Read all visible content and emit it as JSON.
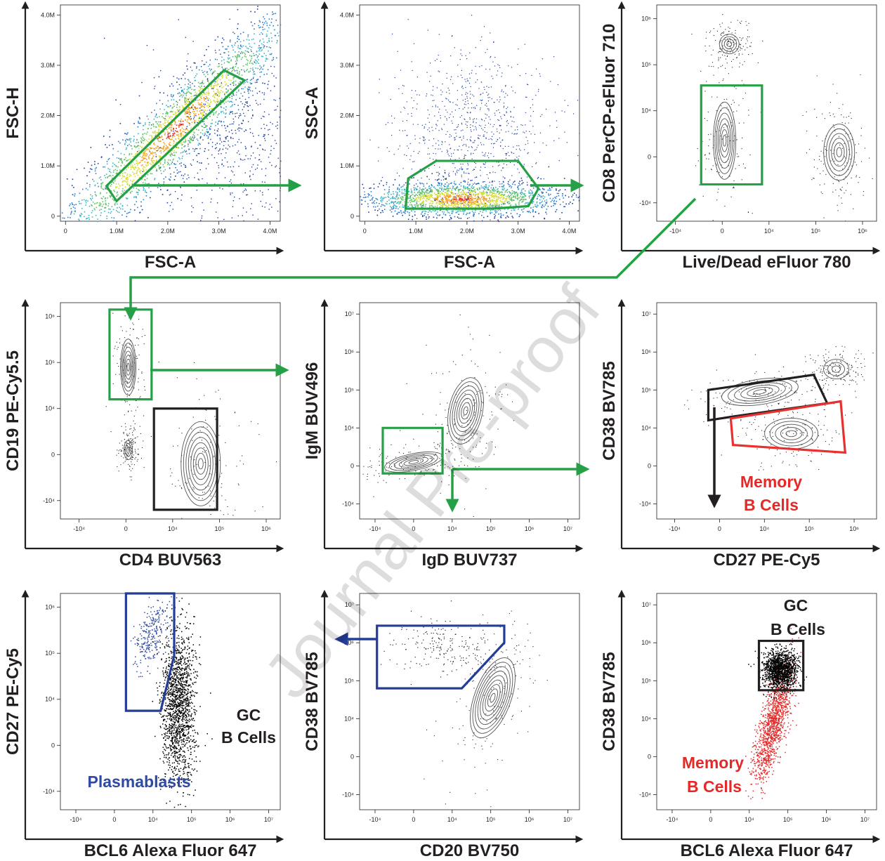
{
  "watermark": "Journal Pre-proof",
  "colors": {
    "gate_green": "#26a046",
    "gate_black": "#231f20",
    "gate_red": "#e8302f",
    "gate_blue": "#233d99",
    "memory_red": "#e42a28",
    "plasmablast_blue": "#2e4aa3",
    "axis": "#231f20"
  },
  "chart_data": [
    {
      "id": "p1",
      "type": "scatter",
      "style": "pseudocolor-density",
      "xlabel": "FSC-A",
      "ylabel": "FSC-H",
      "xticks": [
        "0",
        "1.0M",
        "2.0M",
        "3.0M",
        "4.0M"
      ],
      "yticks": [
        "0",
        "1.0M",
        "2.0M",
        "3.0M",
        "4.0M"
      ],
      "xlim": [
        0,
        4200000
      ],
      "ylim": [
        0,
        4200000
      ],
      "gate": {
        "color": "green",
        "vertices": [
          [
            800000,
            600000
          ],
          [
            3100000,
            2900000
          ],
          [
            3500000,
            2700000
          ],
          [
            1000000,
            300000
          ]
        ]
      },
      "labels": []
    },
    {
      "id": "p2",
      "type": "scatter",
      "style": "pseudocolor-density",
      "xlabel": "FSC-A",
      "ylabel": "SSC-A",
      "xticks": [
        "0",
        "1.0M",
        "2.0M",
        "3.0M",
        "4.0M"
      ],
      "yticks": [
        "0",
        "1.0M",
        "2.0M",
        "3.0M",
        "4.0M"
      ],
      "xlim": [
        0,
        4200000
      ],
      "ylim": [
        0,
        4200000
      ],
      "gate": {
        "color": "green",
        "vertices": [
          [
            800000,
            150000
          ],
          [
            850000,
            750000
          ],
          [
            1400000,
            1100000
          ],
          [
            3000000,
            1100000
          ],
          [
            3400000,
            550000
          ],
          [
            3200000,
            200000
          ],
          [
            2500000,
            150000
          ]
        ]
      },
      "labels": []
    },
    {
      "id": "p3",
      "type": "scatter",
      "style": "contour",
      "xlabel": "Live/Dead eFluor 780",
      "ylabel": "CD8 PerCP-eFluor 710",
      "xticks": [
        "-10⁴",
        "0",
        "10⁴",
        "10⁵",
        "10⁶"
      ],
      "yticks": [
        "-10⁴",
        "0",
        "10⁴",
        "10⁵",
        "10⁶"
      ],
      "gate": {
        "color": "green",
        "vertices": [
          [
            -0.45,
            -0.6
          ],
          [
            -0.45,
            1.55
          ],
          [
            0.85,
            1.55
          ],
          [
            0.85,
            -0.6
          ]
        ]
      },
      "labels": []
    },
    {
      "id": "p4",
      "type": "scatter",
      "style": "contour",
      "xlabel": "CD4 BUV563",
      "ylabel": "CD19 PE-Cy5.5",
      "xticks": [
        "-10⁴",
        "0",
        "10⁴",
        "10⁵",
        "10⁶"
      ],
      "yticks": [
        "-10⁴",
        "0",
        "10⁴",
        "10⁵",
        "10⁶"
      ],
      "gate": {
        "color": "green",
        "vertices": [
          [
            -0.35,
            1.2
          ],
          [
            -0.35,
            3.15
          ],
          [
            0.55,
            3.15
          ],
          [
            0.55,
            1.2
          ]
        ]
      },
      "gate2": {
        "color": "black",
        "vertices": [
          [
            0.6,
            -1.2
          ],
          [
            0.6,
            1.0
          ],
          [
            1.95,
            1.0
          ],
          [
            1.95,
            -1.2
          ]
        ]
      },
      "labels": []
    },
    {
      "id": "p5",
      "type": "scatter",
      "style": "contour",
      "xlabel": "IgD BUV737",
      "ylabel": "IgM BUV496",
      "xticks": [
        "-10⁴",
        "0",
        "10⁴",
        "10⁵",
        "10⁶",
        "10⁷"
      ],
      "yticks": [
        "-10⁴",
        "0",
        "10⁴",
        "10⁵",
        "10⁶",
        "10⁷"
      ],
      "gate": {
        "color": "green",
        "vertices": [
          [
            -0.8,
            -0.2
          ],
          [
            -0.8,
            1.0
          ],
          [
            0.75,
            1.0
          ],
          [
            0.75,
            -0.2
          ]
        ]
      },
      "labels": []
    },
    {
      "id": "p6",
      "type": "scatter",
      "style": "contour",
      "xlabel": "CD27 PE-Cy5",
      "ylabel": "CD38 BV785",
      "xticks": [
        "-10⁴",
        "0",
        "10⁴",
        "10⁵",
        "10⁶"
      ],
      "yticks": [
        "-10⁴",
        "0",
        "10⁴",
        "10⁵",
        "10⁶",
        "10⁷"
      ],
      "gate": {
        "color": "black",
        "vertices": [
          [
            -0.25,
            1.2
          ],
          [
            -0.25,
            2.0
          ],
          [
            2.1,
            2.4
          ],
          [
            2.4,
            1.65
          ],
          [
            0.3,
            1.3
          ]
        ]
      },
      "gate2": {
        "color": "red",
        "vertices": [
          [
            0.3,
            0.55
          ],
          [
            0.25,
            1.25
          ],
          [
            2.7,
            1.7
          ],
          [
            2.8,
            0.35
          ]
        ]
      },
      "labels": [
        {
          "text": "Memory",
          "color": "red"
        },
        {
          "text": "B Cells",
          "color": "red"
        }
      ]
    },
    {
      "id": "p7",
      "type": "scatter",
      "style": "dot",
      "xlabel": "BCL6 Alexa Fluor 647",
      "ylabel": "CD27 PE-Cy5",
      "xticks": [
        "-10⁴",
        "0",
        "10⁴",
        "10⁵",
        "10⁶",
        "10⁷"
      ],
      "yticks": [
        "-10⁴",
        "0",
        "10⁴",
        "10⁵",
        "10⁶"
      ],
      "gate": {
        "color": "blue",
        "vertices": [
          [
            0.3,
            3.3
          ],
          [
            1.55,
            3.3
          ],
          [
            1.55,
            1.95
          ],
          [
            1.2,
            0.75
          ],
          [
            0.3,
            0.75
          ]
        ]
      },
      "labels": [
        {
          "text": "GC",
          "color": "black"
        },
        {
          "text": "B Cells",
          "color": "black"
        },
        {
          "text": "Plasmablasts",
          "color": "blue"
        }
      ]
    },
    {
      "id": "p8",
      "type": "scatter",
      "style": "contour",
      "xlabel": "CD20 BV750",
      "ylabel": "CD38 BV785",
      "xticks": [
        "-10⁴",
        "0",
        "10⁴",
        "10⁵",
        "10⁶",
        "10⁷"
      ],
      "yticks": [
        "-10⁴",
        "0",
        "10⁴",
        "10⁵",
        "10⁶",
        "10⁷"
      ],
      "gate": {
        "color": "blue",
        "vertices": [
          [
            -0.95,
            3.45
          ],
          [
            -0.95,
            1.8
          ],
          [
            1.25,
            1.8
          ],
          [
            2.35,
            3.0
          ],
          [
            2.35,
            3.45
          ]
        ]
      },
      "labels": []
    },
    {
      "id": "p9",
      "type": "scatter",
      "style": "dot",
      "xlabel": "BCL6 Alexa Fluor 647",
      "ylabel": "CD38 BV785",
      "xticks": [
        "-10⁴",
        "0",
        "10⁴",
        "10⁵",
        "10⁶",
        "10⁷"
      ],
      "yticks": [
        "-10⁴",
        "0",
        "10⁴",
        "10⁵",
        "10⁶",
        "10⁷"
      ],
      "gate": {
        "color": "black",
        "vertices": [
          [
            1.25,
            3.05
          ],
          [
            1.25,
            1.75
          ],
          [
            2.4,
            1.75
          ],
          [
            2.4,
            3.05
          ]
        ]
      },
      "labels": [
        {
          "text": "GC",
          "color": "black"
        },
        {
          "text": "B Cells",
          "color": "black"
        },
        {
          "text": "Memory",
          "color": "red"
        },
        {
          "text": "B Cells",
          "color": "red"
        }
      ]
    }
  ]
}
